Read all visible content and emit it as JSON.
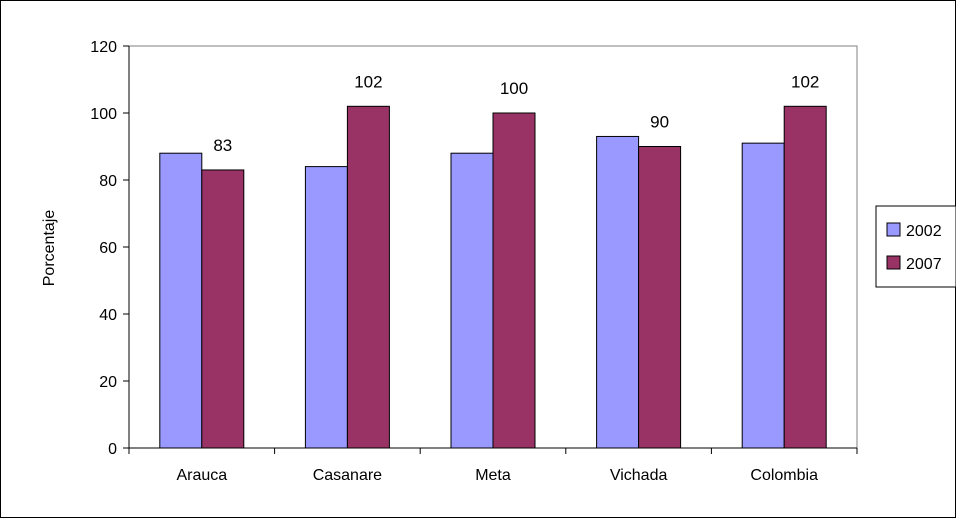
{
  "chart_data": {
    "type": "bar",
    "categories": [
      "Arauca",
      "Casanare",
      "Meta",
      "Vichada",
      "Colombia"
    ],
    "series": [
      {
        "name": "2002",
        "values": [
          88,
          84,
          88,
          93,
          91
        ],
        "color": "#9999ff"
      },
      {
        "name": "2007",
        "values": [
          83,
          102,
          100,
          90,
          102
        ],
        "color": "#993366"
      }
    ],
    "data_labels": [
      "83",
      "102",
      "100",
      "90",
      "102"
    ],
    "title": "",
    "xlabel": "",
    "ylabel": "Porcentaje",
    "ylim": [
      0,
      120
    ],
    "yticks": [
      0,
      20,
      40,
      60,
      80,
      100,
      120
    ],
    "grid": false,
    "legend": "right"
  }
}
